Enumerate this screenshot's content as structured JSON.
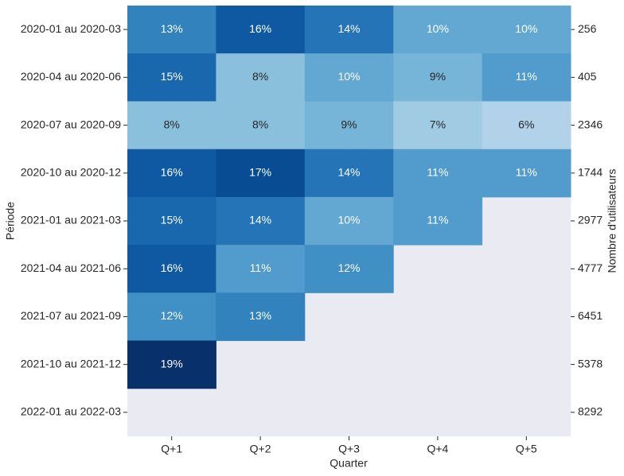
{
  "chart_data": {
    "type": "heatmap",
    "xlabel": "Quarter",
    "ylabel": "Période",
    "y2label": "Nombre d'utilisateurs",
    "columns": [
      "Q+1",
      "Q+2",
      "Q+3",
      "Q+4",
      "Q+5"
    ],
    "rows": [
      "2020-01 au 2020-03",
      "2020-04 au 2020-06",
      "2020-07 au 2020-09",
      "2020-10 au 2020-12",
      "2021-01 au 2021-03",
      "2021-04 au 2021-06",
      "2021-07 au 2021-09",
      "2021-10 au 2021-12",
      "2022-01 au 2022-03"
    ],
    "y2_values": [
      256,
      405,
      2346,
      1744,
      2977,
      4777,
      6451,
      5378,
      8292
    ],
    "values": [
      [
        13,
        16,
        14,
        10,
        10
      ],
      [
        15,
        8,
        10,
        9,
        11
      ],
      [
        8,
        8,
        9,
        7,
        6
      ],
      [
        16,
        17,
        14,
        11,
        11
      ],
      [
        15,
        14,
        10,
        11,
        null
      ],
      [
        16,
        11,
        12,
        null,
        null
      ],
      [
        12,
        13,
        null,
        null,
        null
      ],
      [
        19,
        null,
        null,
        null,
        null
      ],
      [
        null,
        null,
        null,
        null,
        null
      ]
    ],
    "value_labels": [
      [
        "13%",
        "16%",
        "14%",
        "10%",
        "10%"
      ],
      [
        "15%",
        "8%",
        "10%",
        "9%",
        "11%"
      ],
      [
        "8%",
        "8%",
        "9%",
        "7%",
        "6%"
      ],
      [
        "16%",
        "17%",
        "14%",
        "11%",
        "11%"
      ],
      [
        "15%",
        "14%",
        "10%",
        "11%",
        null
      ],
      [
        "16%",
        "11%",
        "12%",
        null,
        null
      ],
      [
        "12%",
        "13%",
        null,
        null,
        null
      ],
      [
        "19%",
        null,
        null,
        null,
        null
      ],
      [
        null,
        null,
        null,
        null,
        null
      ]
    ],
    "colormap": "Blues",
    "color_range": [
      0,
      19
    ],
    "background": "#eaeaf2"
  }
}
